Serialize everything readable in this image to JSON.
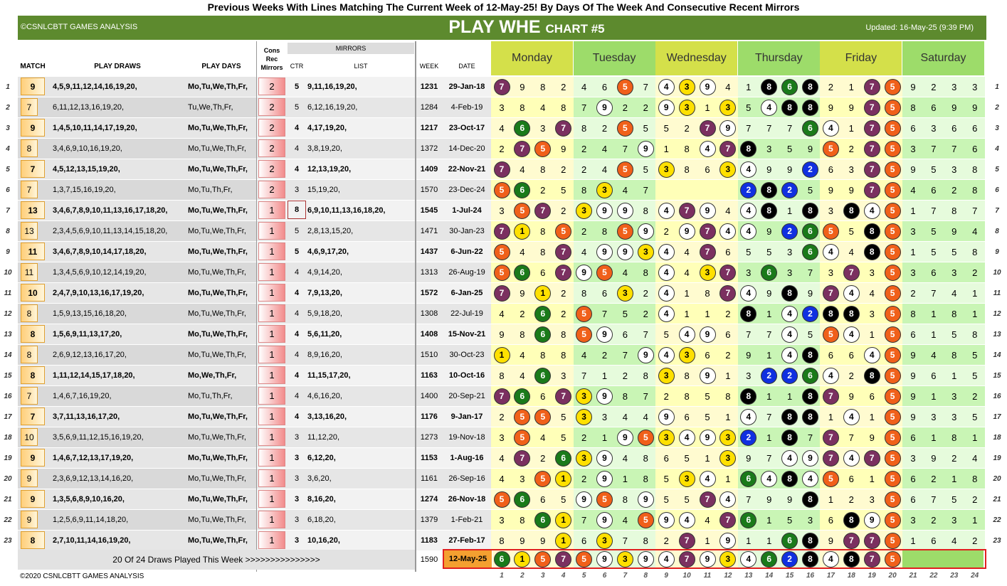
{
  "header": {
    "top_title": "Previous Weeks With Lines Matching The Current Week of 12-May-25! By Days Of The Week And Consecutive Recent Mirrors",
    "left": "©CSNLCBTT GAMES ANALYSIS",
    "main_title": "PLAY WHE",
    "chart_label": "CHART #5",
    "updated": "Updated: 16-May-25 (9:39 PM)"
  },
  "columns": {
    "match": "MATCH",
    "draws": "PLAY DRAWS",
    "days": "PLAY DAYS",
    "cons": "Cons",
    "rec": "Rec",
    "mirrors": "Mirrors",
    "mirrors_group": "MIRRORS",
    "ctr": "CTR",
    "list": "LIST",
    "week": "WEEK",
    "date": "DATE"
  },
  "days": [
    "Monday",
    "Tuesday",
    "Wednesday",
    "Thursday",
    "Friday",
    "Saturday"
  ],
  "colors": {
    "maroon": "#7b3060",
    "orange": "#f0601a",
    "green": "#1a7a1a",
    "yellow": "#ffe000",
    "white": "#ffffff",
    "black": "#000000",
    "blue": "#1030e0"
  },
  "rows": [
    {
      "n": "1",
      "match": "9",
      "bold": true,
      "draws": "4,5,9,11,12,14,16,19,20,",
      "days": "Mo,Tu,We,Th,Fr,",
      "cons": "2",
      "ctr": "5",
      "list": "9,11,16,19,20,",
      "week": "1231",
      "date": "29-Jan-18",
      "nums": [
        "M7",
        "9",
        "8",
        "2",
        "4",
        "6",
        "O5",
        "7",
        "W4",
        "Y3",
        "W9",
        "4",
        "1",
        "K8",
        "G6",
        "K8",
        "2",
        "1",
        "M7",
        "O5",
        "9",
        "2",
        "3",
        "3"
      ]
    },
    {
      "n": "2",
      "match": "7",
      "bold": false,
      "draws": "6,11,12,13,16,19,20,",
      "days": "Tu,We,Th,Fr,",
      "cons": "2",
      "ctr": "5",
      "list": "6,12,16,19,20,",
      "week": "1284",
      "date": "4-Feb-19",
      "nums": [
        "3",
        "8",
        "4",
        "8",
        "7",
        "W9",
        "2",
        "2",
        "W9",
        "Y3",
        "1",
        "Y3",
        "5",
        "W4",
        "K8",
        "K8",
        "9",
        "9",
        "M7",
        "O5",
        "8",
        "6",
        "9",
        "9"
      ]
    },
    {
      "n": "3",
      "match": "9",
      "bold": true,
      "draws": "1,4,5,10,11,14,17,19,20,",
      "days": "Mo,Tu,We,Th,Fr,",
      "cons": "2",
      "ctr": "4",
      "list": "4,17,19,20,",
      "week": "1217",
      "date": "23-Oct-17",
      "nums": [
        "4",
        "G6",
        "3",
        "M7",
        "8",
        "2",
        "O5",
        "5",
        "5",
        "2",
        "M7",
        "W9",
        "7",
        "7",
        "7",
        "G6",
        "W4",
        "1",
        "M7",
        "O5",
        "6",
        "3",
        "6",
        "6"
      ]
    },
    {
      "n": "4",
      "match": "8",
      "bold": false,
      "draws": "3,4,6,9,10,16,19,20,",
      "days": "Mo,Tu,We,Th,Fr,",
      "cons": "2",
      "ctr": "4",
      "list": "3,8,19,20,",
      "week": "1372",
      "date": "14-Dec-20",
      "nums": [
        "2",
        "M7",
        "O5",
        "9",
        "2",
        "4",
        "7",
        "W9",
        "1",
        "8",
        "W4",
        "M7",
        "K8",
        "3",
        "5",
        "9",
        "O5",
        "2",
        "M7",
        "O5",
        "3",
        "7",
        "7",
        "6"
      ]
    },
    {
      "n": "5",
      "match": "7",
      "bold": true,
      "draws": "4,5,12,13,15,19,20,",
      "days": "Mo,Tu,We,Th,Fr,",
      "cons": "2",
      "ctr": "4",
      "list": "12,13,19,20,",
      "week": "1409",
      "date": "22-Nov-21",
      "nums": [
        "M7",
        "4",
        "8",
        "2",
        "2",
        "4",
        "O5",
        "5",
        "Y3",
        "8",
        "6",
        "Y3",
        "W4",
        "9",
        "9",
        "B2",
        "6",
        "3",
        "M7",
        "O5",
        "9",
        "5",
        "3",
        "8"
      ]
    },
    {
      "n": "6",
      "match": "7",
      "bold": false,
      "draws": "1,3,7,15,16,19,20,",
      "days": "Mo,Tu,Th,Fr,",
      "cons": "2",
      "ctr": "3",
      "list": "15,19,20,",
      "week": "1570",
      "date": "23-Dec-24",
      "nums": [
        "O5",
        "G6",
        "2",
        "5",
        "8",
        "Y3",
        "4",
        "7",
        "",
        "",
        "",
        "",
        "B2",
        "K8",
        "B2",
        "5",
        "9",
        "9",
        "M7",
        "O5",
        "4",
        "6",
        "2",
        "8"
      ]
    },
    {
      "n": "7",
      "match": "13",
      "bold": true,
      "draws": "3,4,6,7,8,9,10,11,13,16,17,18,20,",
      "days": "Mo,Tu,We,Th,Fr,",
      "cons": "1",
      "ctr": "8",
      "list": "6,9,10,11,13,16,18,20,",
      "week": "1545",
      "date": "1-Jul-24",
      "nums": [
        "3",
        "O5",
        "M7",
        "2",
        "Y3",
        "W9",
        "W9",
        "8",
        "W4",
        "M7",
        "W9",
        "4",
        "W4",
        "K8",
        "1",
        "K8",
        "3",
        "K8",
        "W4",
        "O5",
        "1",
        "7",
        "8",
        "7"
      ]
    },
    {
      "n": "8",
      "match": "13",
      "bold": false,
      "draws": "2,3,4,5,6,9,10,11,13,14,15,18,20,",
      "days": "Mo,Tu,We,Th,Fr,",
      "cons": "1",
      "ctr": "5",
      "list": "2,8,13,15,20,",
      "week": "1471",
      "date": "30-Jan-23",
      "nums": [
        "M7",
        "Y1",
        "8",
        "O5",
        "2",
        "8",
        "O5",
        "W9",
        "2",
        "W9",
        "M7",
        "W4",
        "W4",
        "9",
        "B2",
        "G6",
        "O5",
        "5",
        "K8",
        "O5",
        "3",
        "5",
        "9",
        "4"
      ]
    },
    {
      "n": "9",
      "match": "11",
      "bold": true,
      "draws": "3,4,6,7,8,9,10,14,17,18,20,",
      "days": "Mo,Tu,We,Th,Fr,",
      "cons": "1",
      "ctr": "5",
      "list": "4,6,9,17,20,",
      "week": "1437",
      "date": "6-Jun-22",
      "nums": [
        "O5",
        "4",
        "8",
        "M7",
        "4",
        "W9",
        "W9",
        "Y3",
        "W4",
        "4",
        "M7",
        "6",
        "5",
        "5",
        "3",
        "G6",
        "W4",
        "4",
        "K8",
        "O5",
        "1",
        "5",
        "5",
        "8"
      ]
    },
    {
      "n": "10",
      "match": "11",
      "bold": false,
      "draws": "1,3,4,5,6,9,10,12,14,19,20,",
      "days": "Mo,Tu,We,Th,Fr,",
      "cons": "1",
      "ctr": "4",
      "list": "4,9,14,20,",
      "week": "1313",
      "date": "26-Aug-19",
      "nums": [
        "O5",
        "G6",
        "6",
        "M7",
        "W9",
        "O5",
        "4",
        "8",
        "W4",
        "4",
        "Y3",
        "M7",
        "3",
        "G6",
        "3",
        "7",
        "3",
        "M7",
        "3",
        "O5",
        "3",
        "6",
        "3",
        "2"
      ]
    },
    {
      "n": "11",
      "match": "10",
      "bold": true,
      "draws": "2,4,7,9,10,13,16,17,19,20,",
      "days": "Mo,Tu,We,Th,Fr,",
      "cons": "1",
      "ctr": "4",
      "list": "7,9,13,20,",
      "week": "1572",
      "date": "6-Jan-25",
      "nums": [
        "M7",
        "9",
        "Y1",
        "2",
        "8",
        "6",
        "Y3",
        "2",
        "W4",
        "1",
        "8",
        "M7",
        "W4",
        "9",
        "K8",
        "9",
        "M7",
        "W4",
        "4",
        "O5",
        "2",
        "7",
        "4",
        "1"
      ]
    },
    {
      "n": "12",
      "match": "8",
      "bold": false,
      "draws": "1,5,9,13,15,16,18,20,",
      "days": "Mo,Tu,We,Th,Fr,",
      "cons": "1",
      "ctr": "4",
      "list": "5,9,18,20,",
      "week": "1308",
      "date": "22-Jul-19",
      "nums": [
        "4",
        "2",
        "G6",
        "2",
        "O5",
        "7",
        "5",
        "2",
        "W4",
        "1",
        "1",
        "2",
        "K8",
        "1",
        "W4",
        "B2",
        "K8",
        "K8",
        "3",
        "O5",
        "8",
        "1",
        "8",
        "1"
      ]
    },
    {
      "n": "13",
      "match": "8",
      "bold": true,
      "draws": "1,5,6,9,11,13,17,20,",
      "days": "Mo,Tu,We,Th,Fr,",
      "cons": "1",
      "ctr": "4",
      "list": "5,6,11,20,",
      "week": "1408",
      "date": "15-Nov-21",
      "nums": [
        "9",
        "8",
        "G6",
        "8",
        "O5",
        "W9",
        "6",
        "7",
        "5",
        "W4",
        "W9",
        "6",
        "7",
        "7",
        "W4",
        "5",
        "O5",
        "W4",
        "1",
        "O5",
        "6",
        "1",
        "5",
        "8"
      ]
    },
    {
      "n": "14",
      "match": "8",
      "bold": false,
      "draws": "2,6,9,12,13,16,17,20,",
      "days": "Mo,Tu,We,Th,Fr,",
      "cons": "1",
      "ctr": "4",
      "list": "8,9,16,20,",
      "week": "1510",
      "date": "30-Oct-23",
      "nums": [
        "Y1",
        "4",
        "8",
        "8",
        "4",
        "2",
        "7",
        "W9",
        "W4",
        "Y3",
        "6",
        "2",
        "9",
        "1",
        "W4",
        "K8",
        "6",
        "6",
        "W4",
        "O5",
        "9",
        "4",
        "8",
        "5"
      ]
    },
    {
      "n": "15",
      "match": "8",
      "bold": true,
      "draws": "1,11,12,14,15,17,18,20,",
      "days": "Mo,We,Th,Fr,",
      "cons": "1",
      "ctr": "4",
      "list": "11,15,17,20,",
      "week": "1163",
      "date": "10-Oct-16",
      "nums": [
        "8",
        "4",
        "G6",
        "3",
        "7",
        "1",
        "2",
        "8",
        "Y3",
        "8",
        "W9",
        "1",
        "3",
        "B2",
        "B2",
        "G6",
        "W4",
        "2",
        "K8",
        "O5",
        "9",
        "6",
        "1",
        "5"
      ]
    },
    {
      "n": "16",
      "match": "7",
      "bold": false,
      "draws": "1,4,6,7,16,19,20,",
      "days": "Mo,Tu,Th,Fr,",
      "cons": "1",
      "ctr": "4",
      "list": "4,6,16,20,",
      "week": "1400",
      "date": "20-Sep-21",
      "nums": [
        "M7",
        "G6",
        "6",
        "M7",
        "Y3",
        "W9",
        "8",
        "7",
        "2",
        "8",
        "5",
        "8",
        "K8",
        "1",
        "1",
        "K8",
        "M7",
        "9",
        "6",
        "O5",
        "9",
        "1",
        "3",
        "2"
      ]
    },
    {
      "n": "17",
      "match": "7",
      "bold": true,
      "draws": "3,7,11,13,16,17,20,",
      "days": "Mo,Tu,We,Th,Fr,",
      "cons": "1",
      "ctr": "4",
      "list": "3,13,16,20,",
      "week": "1176",
      "date": "9-Jan-17",
      "nums": [
        "2",
        "O5",
        "O5",
        "5",
        "Y3",
        "3",
        "4",
        "4",
        "W9",
        "6",
        "5",
        "1",
        "W4",
        "7",
        "K8",
        "K8",
        "1",
        "W4",
        "1",
        "O5",
        "9",
        "3",
        "3",
        "5"
      ]
    },
    {
      "n": "18",
      "match": "10",
      "bold": false,
      "draws": "3,5,6,9,11,12,15,16,19,20,",
      "days": "Mo,Tu,We,Th,Fr,",
      "cons": "1",
      "ctr": "3",
      "list": "11,12,20,",
      "week": "1273",
      "date": "19-Nov-18",
      "nums": [
        "3",
        "O5",
        "4",
        "5",
        "2",
        "1",
        "W9",
        "O5",
        "Y3",
        "W4",
        "W9",
        "Y3",
        "B2",
        "1",
        "K8",
        "7",
        "M7",
        "7",
        "9",
        "O5",
        "6",
        "1",
        "8",
        "1"
      ]
    },
    {
      "n": "19",
      "match": "9",
      "bold": true,
      "draws": "1,4,6,7,12,13,17,19,20,",
      "days": "Mo,Tu,We,Th,Fr,",
      "cons": "1",
      "ctr": "3",
      "list": "6,12,20,",
      "week": "1153",
      "date": "1-Aug-16",
      "nums": [
        "4",
        "M7",
        "2",
        "G6",
        "Y3",
        "W9",
        "4",
        "8",
        "6",
        "5",
        "1",
        "Y3",
        "9",
        "7",
        "W4",
        "W9",
        "M7",
        "W4",
        "M7",
        "O5",
        "3",
        "9",
        "2",
        "4"
      ]
    },
    {
      "n": "20",
      "match": "9",
      "bold": false,
      "draws": "2,3,6,9,12,13,14,16,20,",
      "days": "Mo,Tu,We,Th,Fr,",
      "cons": "1",
      "ctr": "3",
      "list": "3,6,20,",
      "week": "1161",
      "date": "26-Sep-16",
      "nums": [
        "4",
        "3",
        "O5",
        "Y1",
        "2",
        "W9",
        "1",
        "8",
        "5",
        "Y3",
        "W4",
        "1",
        "G6",
        "W4",
        "K8",
        "W4",
        "O5",
        "6",
        "1",
        "O5",
        "6",
        "2",
        "1",
        "8"
      ]
    },
    {
      "n": "21",
      "match": "9",
      "bold": true,
      "draws": "1,3,5,6,8,9,10,16,20,",
      "days": "Mo,Tu,We,Th,Fr,",
      "cons": "1",
      "ctr": "3",
      "list": "8,16,20,",
      "week": "1274",
      "date": "26-Nov-18",
      "nums": [
        "O5",
        "G6",
        "6",
        "5",
        "W9",
        "O5",
        "8",
        "W9",
        "5",
        "5",
        "M7",
        "W4",
        "7",
        "9",
        "9",
        "K8",
        "1",
        "2",
        "3",
        "O5",
        "6",
        "7",
        "5",
        "2"
      ]
    },
    {
      "n": "22",
      "match": "9",
      "bold": false,
      "draws": "1,2,5,6,9,11,14,18,20,",
      "days": "Mo,Tu,We,Th,Fr,",
      "cons": "1",
      "ctr": "3",
      "list": "6,18,20,",
      "week": "1379",
      "date": "1-Feb-21",
      "nums": [
        "3",
        "8",
        "G6",
        "Y1",
        "7",
        "W9",
        "4",
        "O5",
        "W9",
        "W4",
        "4",
        "M7",
        "G6",
        "1",
        "5",
        "3",
        "6",
        "K8",
        "W9",
        "O5",
        "3",
        "2",
        "3",
        "1"
      ]
    },
    {
      "n": "23",
      "match": "8",
      "bold": true,
      "draws": "2,7,10,11,14,16,19,20,",
      "days": "Mo,Tu,We,Th,Fr,",
      "cons": "1",
      "ctr": "3",
      "list": "10,16,20,",
      "week": "1183",
      "date": "27-Feb-17",
      "nums": [
        "8",
        "9",
        "9",
        "Y1",
        "6",
        "Y3",
        "7",
        "8",
        "2",
        "M7",
        "1",
        "W9",
        "1",
        "1",
        "G6",
        "K8",
        "9",
        "M7",
        "M7",
        "O5",
        "1",
        "6",
        "4",
        "2"
      ]
    }
  ],
  "footer": {
    "summary": "20 Of 24 Draws Played This Week   >>>>>>>>>>>>>>>",
    "week": "1590",
    "date": "12-May-25",
    "nums": [
      "G6",
      "Y1",
      "O5",
      "M7",
      "O5",
      "W9",
      "Y3",
      "W9",
      "W4",
      "M7",
      "W9",
      "Y3",
      "W4",
      "G6",
      "B2",
      "K8",
      "W4",
      "K8",
      "M7",
      "O5"
    ],
    "copyright": "©2020 CSNLCBTT GAMES ANALYSIS"
  },
  "col_numbers": [
    "1",
    "2",
    "3",
    "4",
    "5",
    "6",
    "7",
    "8",
    "9",
    "10",
    "11",
    "12",
    "13",
    "14",
    "15",
    "16",
    "17",
    "18",
    "19",
    "20",
    "21",
    "22",
    "23",
    "24"
  ]
}
